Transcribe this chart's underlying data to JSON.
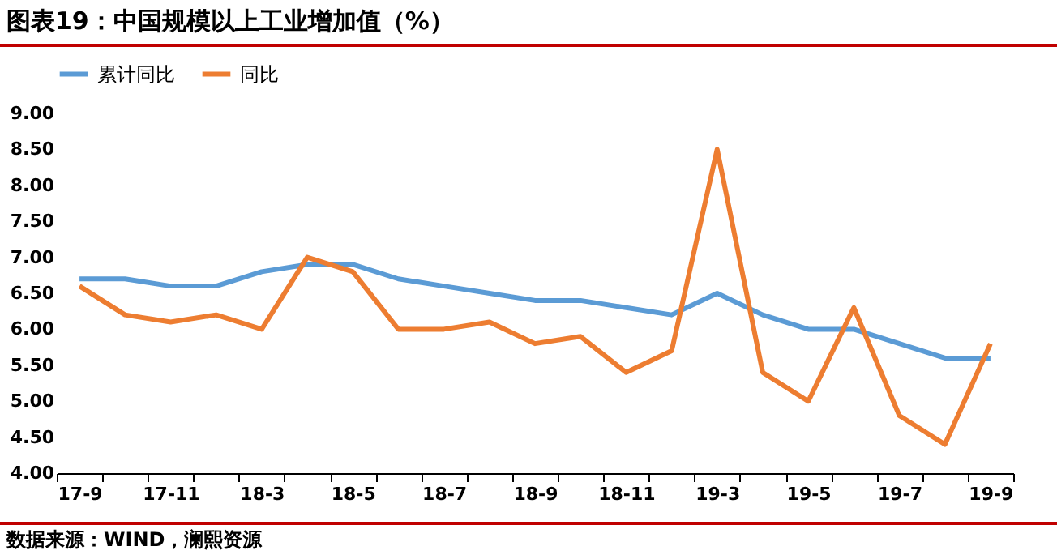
{
  "chart_data": {
    "type": "line",
    "title": "图表19：中国规模以上工业增加值（%）",
    "categories": [
      "17-9",
      null,
      "17-11",
      null,
      "18-3",
      null,
      "18-5",
      null,
      "18-7",
      null,
      "18-9",
      null,
      "18-11",
      null,
      "19-3",
      null,
      "19-5",
      null,
      "19-7",
      null,
      "19-9"
    ],
    "series": [
      {
        "name": "累计同比",
        "color": "#5b9bd5",
        "values": [
          6.7,
          6.7,
          6.6,
          6.6,
          6.8,
          6.9,
          6.9,
          6.7,
          6.6,
          6.5,
          6.4,
          6.4,
          6.3,
          6.2,
          6.5,
          6.2,
          6.0,
          6.0,
          5.8,
          5.6,
          5.6
        ]
      },
      {
        "name": "同比",
        "color": "#ed7d31",
        "values": [
          6.6,
          6.2,
          6.1,
          6.2,
          6.0,
          7.0,
          6.8,
          6.0,
          6.0,
          6.1,
          5.8,
          5.9,
          5.4,
          5.7,
          8.5,
          5.4,
          5.0,
          6.3,
          4.8,
          4.4,
          5.8
        ]
      }
    ],
    "ylim": [
      4,
      9
    ],
    "yticks": [
      {
        "value": 4,
        "label": "4.00"
      },
      {
        "value": 4.5,
        "label": "4.50"
      },
      {
        "value": 5,
        "label": "5.00"
      },
      {
        "value": 5.5,
        "label": "5.50"
      },
      {
        "value": 6,
        "label": "6.00"
      },
      {
        "value": 6.5,
        "label": "6.50"
      },
      {
        "value": 7,
        "label": "7.00"
      },
      {
        "value": 7.5,
        "label": "7.50"
      },
      {
        "value": 8,
        "label": "8.00"
      },
      {
        "value": 8.5,
        "label": "8.50"
      },
      {
        "value": 9,
        "label": "9.00"
      }
    ],
    "grid": false,
    "legend": "top",
    "marker": "none",
    "line_style": "solid",
    "annotations": [
      "数据来源：WIND，澜熙资源"
    ]
  }
}
